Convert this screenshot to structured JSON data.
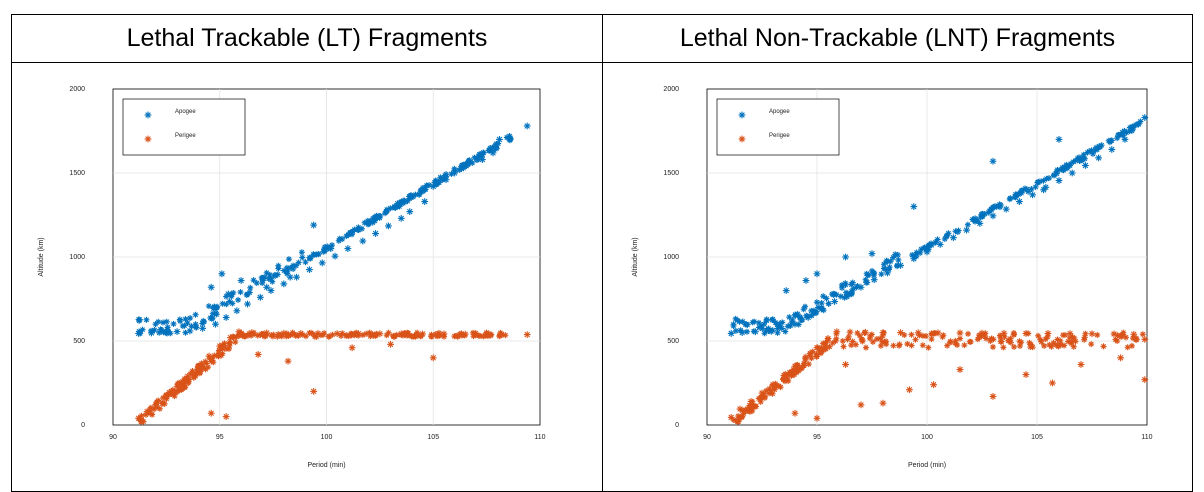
{
  "panels": [
    {
      "title": "Lethal Trackable (LT) Fragments"
    },
    {
      "title": "Lethal Non-Trackable (LNT) Fragments"
    }
  ],
  "chart_data": [
    {
      "type": "scatter",
      "title": "",
      "xlabel": "Period (min)",
      "ylabel": "Altitude (km)",
      "xlim": [
        90,
        110
      ],
      "ylim": [
        0,
        2000
      ],
      "xticks": [
        90,
        95,
        100,
        105,
        110
      ],
      "yticks": [
        0,
        500,
        1000,
        1500,
        2000
      ],
      "grid": true,
      "legend_position": "top-left",
      "series": [
        {
          "name": "Apogee",
          "color": "#0072BD",
          "marker": "asterisk",
          "x": [
            91.2,
            91.8,
            92.5,
            93.0,
            93.6,
            94.2,
            94.8,
            95.3,
            95.8,
            96.3,
            96.9,
            97.4,
            98.0,
            98.6,
            99.2,
            99.8,
            100.4,
            101.0,
            101.7,
            102.3,
            102.9,
            103.5,
            103.9,
            104.6,
            105.0,
            105.6,
            106.0,
            107.3,
            107.8,
            108.1,
            109.4,
            94.6,
            95.1,
            95.4,
            96.0,
            97.2,
            98.3,
            99.4,
            100.2
          ],
          "y": [
            545,
            548,
            552,
            556,
            560,
            575,
            600,
            640,
            680,
            720,
            760,
            800,
            840,
            880,
            925,
            965,
            1005,
            1050,
            1095,
            1140,
            1185,
            1230,
            1270,
            1330,
            1420,
            1460,
            1500,
            1580,
            1620,
            1700,
            1780,
            820,
            900,
            780,
            860,
            820,
            880,
            1190,
            1050
          ]
        },
        {
          "name": "Perigee",
          "color": "#D95319",
          "marker": "asterisk",
          "x": [
            91.2,
            91.6,
            92.0,
            92.5,
            93.0,
            93.5,
            94.0,
            94.5,
            95.0,
            95.5,
            95.9,
            96.5,
            97.2,
            98.0,
            98.8,
            99.6,
            100.5,
            101.5,
            102.5,
            103.5,
            104.5,
            105.5,
            106.5,
            107.5,
            108.2,
            109.4,
            94.6,
            95.3,
            96.8,
            98.2,
            99.4,
            101.2,
            103.0,
            105.0
          ],
          "y": [
            40,
            80,
            120,
            170,
            230,
            290,
            350,
            410,
            470,
            520,
            555,
            550,
            548,
            546,
            545,
            545,
            544,
            544,
            543,
            543,
            542,
            542,
            541,
            541,
            540,
            538,
            70,
            50,
            420,
            380,
            200,
            460,
            480,
            400
          ]
        }
      ]
    },
    {
      "type": "scatter",
      "title": "",
      "xlabel": "Period (min)",
      "ylabel": "Altitude (km)",
      "xlim": [
        90,
        110
      ],
      "ylim": [
        0,
        2000
      ],
      "xticks": [
        90,
        95,
        100,
        105,
        110
      ],
      "yticks": [
        0,
        500,
        1000,
        1500,
        2000
      ],
      "grid": true,
      "legend_position": "top-left",
      "series": [
        {
          "name": "Apogee",
          "color": "#0072BD",
          "marker": "asterisk",
          "x": [
            91.1,
            91.6,
            92.2,
            92.8,
            93.4,
            94.0,
            94.6,
            95.2,
            95.8,
            96.4,
            97.0,
            97.6,
            98.2,
            98.8,
            99.4,
            100.0,
            100.6,
            101.2,
            101.8,
            102.4,
            103.0,
            103.6,
            104.2,
            104.8,
            105.4,
            106.0,
            106.6,
            107.2,
            107.8,
            108.4,
            109.0,
            109.6,
            109.9,
            93.6,
            94.5,
            95.0,
            96.3,
            97.5,
            99.4,
            103.0,
            105.3,
            106.0
          ],
          "y": [
            545,
            550,
            555,
            562,
            575,
            600,
            640,
            690,
            735,
            780,
            820,
            865,
            905,
            950,
            990,
            1030,
            1075,
            1115,
            1160,
            1200,
            1245,
            1285,
            1330,
            1370,
            1415,
            1455,
            1500,
            1545,
            1590,
            1640,
            1700,
            1790,
            1830,
            800,
            860,
            900,
            1000,
            1020,
            1300,
            1570,
            1400,
            1700
          ]
        },
        {
          "name": "Perigee",
          "color": "#D95319",
          "marker": "asterisk",
          "x": [
            91.1,
            91.5,
            92.0,
            92.5,
            93.0,
            93.5,
            94.0,
            94.5,
            95.0,
            95.5,
            95.9,
            96.5,
            97.2,
            98.0,
            98.8,
            99.6,
            100.5,
            101.5,
            102.5,
            103.5,
            104.5,
            105.5,
            106.5,
            107.5,
            108.5,
            109.4,
            109.9,
            94.0,
            95.0,
            96.3,
            97.0,
            98.0,
            99.2,
            100.3,
            101.5,
            103.0,
            104.5,
            105.7,
            107.0,
            108.8,
            109.9
          ],
          "y": [
            45,
            95,
            140,
            190,
            240,
            295,
            350,
            405,
            460,
            515,
            555,
            553,
            552,
            550,
            550,
            549,
            548,
            548,
            547,
            546,
            545,
            545,
            544,
            543,
            542,
            540,
            510,
            70,
            40,
            360,
            120,
            130,
            210,
            240,
            330,
            170,
            300,
            250,
            360,
            400,
            270
          ]
        }
      ]
    }
  ]
}
